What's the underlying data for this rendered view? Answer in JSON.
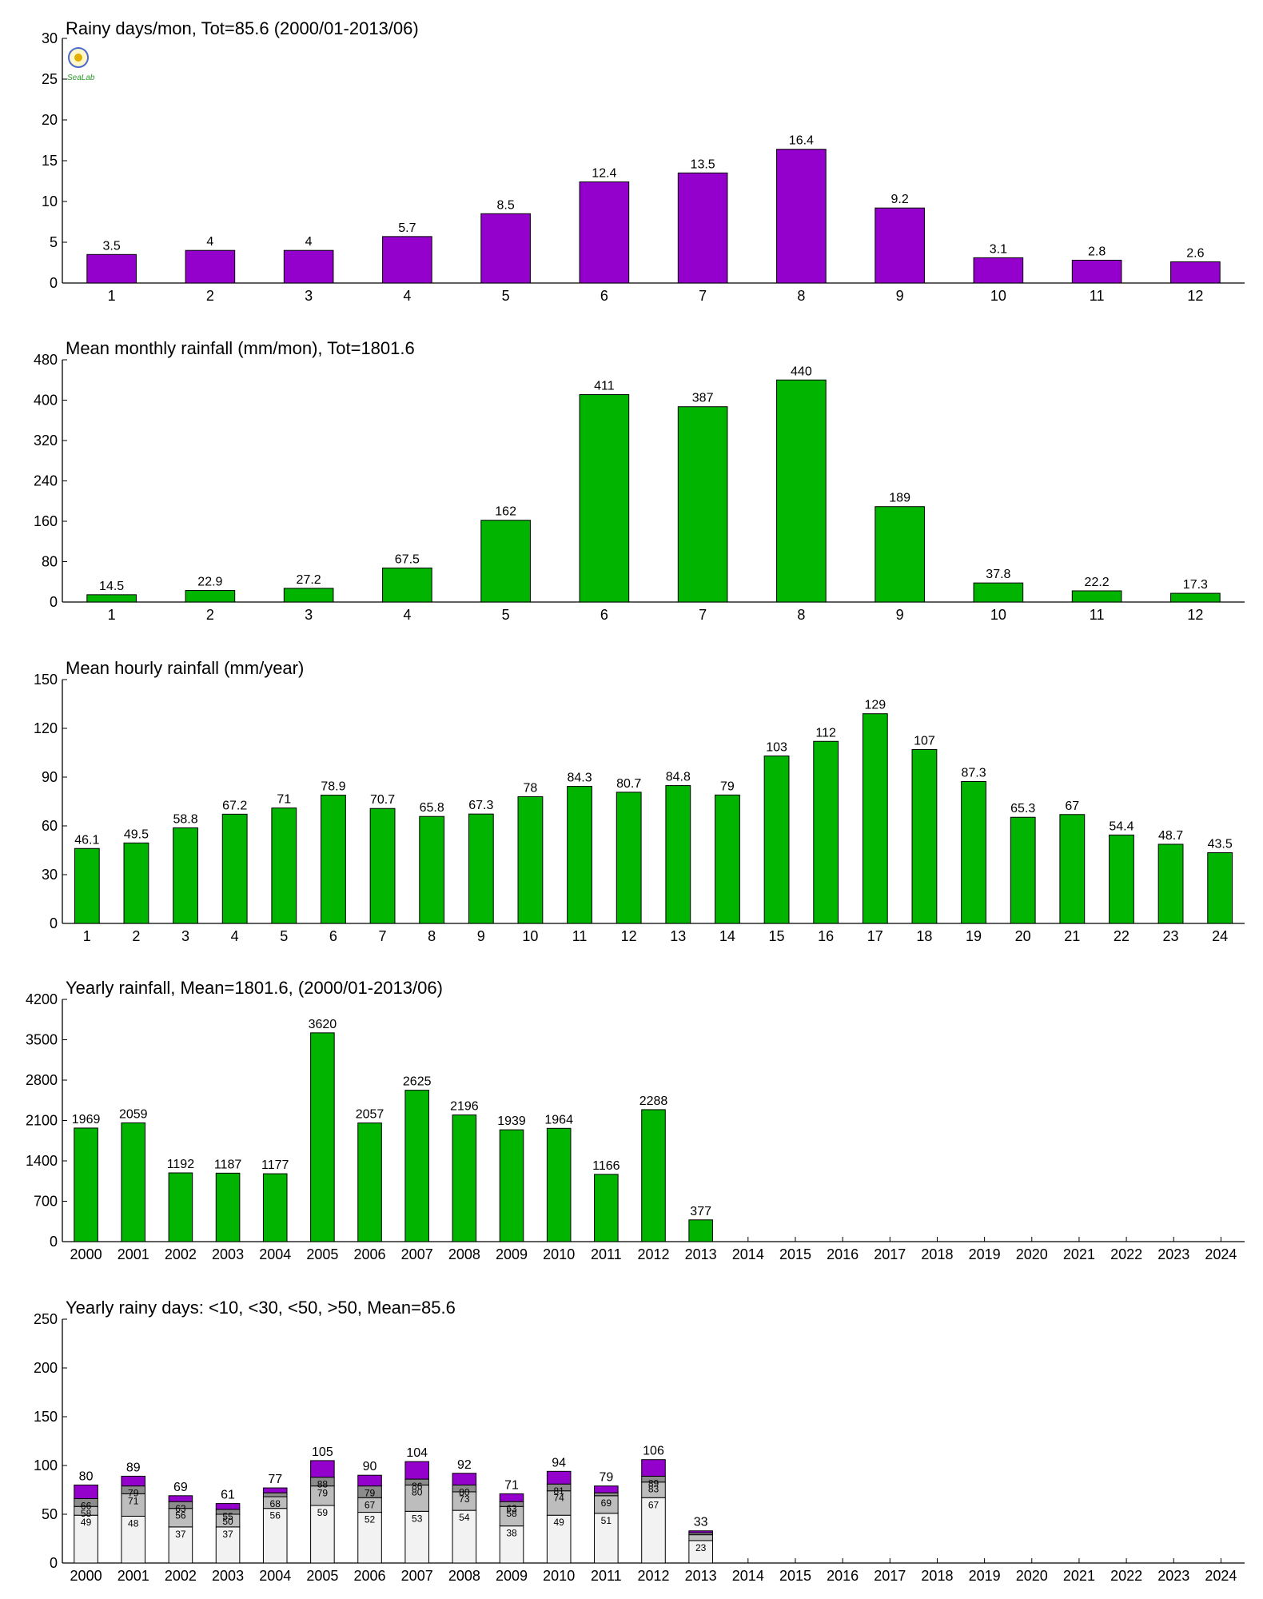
{
  "colors": {
    "purple": "#9400cc",
    "green": "#00b400",
    "seg1": "#f2f2f2",
    "seg2": "#bdbdbd",
    "seg3": "#8c8c8c"
  },
  "logo": {
    "text": "SeaLab",
    "icon": "lab-logo-icon"
  },
  "chart_data": [
    {
      "type": "bar",
      "title": "Rainy days/mon, Tot=85.6 (2000/01-2013/06)",
      "categories": [
        "1",
        "2",
        "3",
        "4",
        "5",
        "6",
        "7",
        "8",
        "9",
        "10",
        "11",
        "12"
      ],
      "values": [
        3.5,
        4,
        4,
        5.7,
        8.5,
        12.4,
        13.5,
        16.4,
        9.2,
        3.1,
        2.8,
        2.6
      ],
      "labels": [
        "3.5",
        "4",
        "4",
        "5.7",
        "8.5",
        "12.4",
        "13.5",
        "16.4",
        "9.2",
        "3.1",
        "2.8",
        "2.6"
      ],
      "ylim": [
        0,
        30
      ],
      "yticks": [
        0,
        5,
        10,
        15,
        20,
        25,
        30
      ],
      "color": "#9400cc",
      "grid": false
    },
    {
      "type": "bar",
      "title": "Mean monthly rainfall (mm/mon), Tot=1801.6",
      "categories": [
        "1",
        "2",
        "3",
        "4",
        "5",
        "6",
        "7",
        "8",
        "9",
        "10",
        "11",
        "12"
      ],
      "values": [
        14.5,
        22.9,
        27.2,
        67.5,
        162,
        411,
        387,
        440,
        189,
        37.8,
        22.2,
        17.3
      ],
      "labels": [
        "14.5",
        "22.9",
        "27.2",
        "67.5",
        "162",
        "411",
        "387",
        "440",
        "189",
        "37.8",
        "22.2",
        "17.3"
      ],
      "ylim": [
        0,
        480
      ],
      "yticks": [
        0,
        80,
        160,
        240,
        320,
        400,
        480
      ],
      "color": "#00b400",
      "grid": false
    },
    {
      "type": "bar",
      "title": "Mean hourly rainfall (mm/year)",
      "categories": [
        "1",
        "2",
        "3",
        "4",
        "5",
        "6",
        "7",
        "8",
        "9",
        "10",
        "11",
        "12",
        "13",
        "14",
        "15",
        "16",
        "17",
        "18",
        "19",
        "20",
        "21",
        "22",
        "23",
        "24"
      ],
      "values": [
        46.1,
        49.5,
        58.8,
        67.2,
        71,
        78.9,
        70.7,
        65.8,
        67.3,
        78,
        84.3,
        80.7,
        84.8,
        79,
        103,
        112,
        129,
        107,
        87.3,
        65.3,
        67,
        54.4,
        48.7,
        43.5
      ],
      "labels": [
        "46.1",
        "49.5",
        "58.8",
        "67.2",
        "71",
        "78.9",
        "70.7",
        "65.8",
        "67.3",
        "78",
        "84.3",
        "80.7",
        "84.8",
        "79",
        "103",
        "112",
        "129",
        "107",
        "87.3",
        "65.3",
        "67",
        "54.4",
        "48.7",
        "43.5"
      ],
      "ylim": [
        0,
        150
      ],
      "yticks": [
        0,
        30,
        60,
        90,
        120,
        150
      ],
      "color": "#00b400",
      "grid": false
    },
    {
      "type": "bar",
      "title": "Yearly rainfall, Mean=1801.6, (2000/01-2013/06)",
      "categories": [
        "2000",
        "2001",
        "2002",
        "2003",
        "2004",
        "2005",
        "2006",
        "2007",
        "2008",
        "2009",
        "2010",
        "2011",
        "2012",
        "2013",
        "2014",
        "2015",
        "2016",
        "2017",
        "2018",
        "2019",
        "2020",
        "2021",
        "2022",
        "2023",
        "2024"
      ],
      "values": [
        1969,
        2059,
        1192,
        1187,
        1177,
        3620,
        2057,
        2625,
        2196,
        1939,
        1964,
        1166,
        2288,
        377,
        null,
        null,
        null,
        null,
        null,
        null,
        null,
        null,
        null,
        null,
        null
      ],
      "labels": [
        "1969",
        "2059",
        "1192",
        "1187",
        "1177",
        "3620",
        "2057",
        "2625",
        "2196",
        "1939",
        "1964",
        "1166",
        "2288",
        "377",
        "",
        "",
        "",
        "",
        "",
        "",
        "",
        "",
        "",
        "",
        ""
      ],
      "ylim": [
        0,
        4200
      ],
      "yticks": [
        0,
        700,
        1400,
        2100,
        2800,
        3500,
        4200
      ],
      "color": "#00b400",
      "grid": false
    },
    {
      "type": "bar",
      "stacked": true,
      "title": "Yearly rainy days: <10, <30, <50, >50, Mean=85.6",
      "categories": [
        "2000",
        "2001",
        "2002",
        "2003",
        "2004",
        "2005",
        "2006",
        "2007",
        "2008",
        "2009",
        "2010",
        "2011",
        "2012",
        "2013",
        "2014",
        "2015",
        "2016",
        "2017",
        "2018",
        "2019",
        "2020",
        "2021",
        "2022",
        "2023",
        "2024"
      ],
      "cumulative": [
        [
          49,
          58,
          66,
          80
        ],
        [
          48,
          71,
          79,
          89
        ],
        [
          37,
          56,
          63,
          69
        ],
        [
          37,
          50,
          55,
          61
        ],
        [
          56,
          68,
          72,
          77
        ],
        [
          59,
          79,
          88,
          105
        ],
        [
          52,
          67,
          79,
          90
        ],
        [
          53,
          80,
          86,
          104
        ],
        [
          54,
          73,
          80,
          92
        ],
        [
          38,
          58,
          63,
          71
        ],
        [
          49,
          74,
          81,
          94
        ],
        [
          51,
          69,
          72,
          79
        ],
        [
          67,
          83,
          89,
          106
        ],
        [
          23,
          29,
          31,
          33
        ],
        null,
        null,
        null,
        null,
        null,
        null,
        null,
        null,
        null,
        null,
        null
      ],
      "series": [
        {
          "name": "<10",
          "color": "#f2f2f2"
        },
        {
          "name": "<30",
          "color": "#bdbdbd"
        },
        {
          "name": "<50",
          "color": "#8c8c8c"
        },
        {
          "name": ">50",
          "color": "#9400cc"
        }
      ],
      "segment_labels": [
        [
          "49",
          "58",
          "66"
        ],
        [
          "48",
          "71",
          "79"
        ],
        [
          "37",
          "56",
          "63"
        ],
        [
          "37",
          "50",
          "55"
        ],
        [
          "56",
          "68",
          ""
        ],
        [
          "59",
          "79",
          "88"
        ],
        [
          "52",
          "67",
          "79"
        ],
        [
          "53",
          "80",
          "86"
        ],
        [
          "54",
          "73",
          "80"
        ],
        [
          "38",
          "58",
          "63"
        ],
        [
          "49",
          "74",
          "81"
        ],
        [
          "51",
          "69",
          ""
        ],
        [
          "67",
          "83",
          "89"
        ],
        [
          "23",
          "",
          ""
        ],
        null,
        null,
        null,
        null,
        null,
        null,
        null,
        null,
        null,
        null,
        null
      ],
      "total_labels": [
        "80",
        "89",
        "69",
        "61",
        "77",
        "105",
        "90",
        "104",
        "92",
        "71",
        "94",
        "79",
        "106",
        "33",
        "",
        "",
        "",
        "",
        "",
        "",
        "",
        "",
        "",
        "",
        ""
      ],
      "ylim": [
        0,
        250
      ],
      "yticks": [
        0,
        50,
        100,
        150,
        200,
        250
      ],
      "grid": false
    }
  ]
}
